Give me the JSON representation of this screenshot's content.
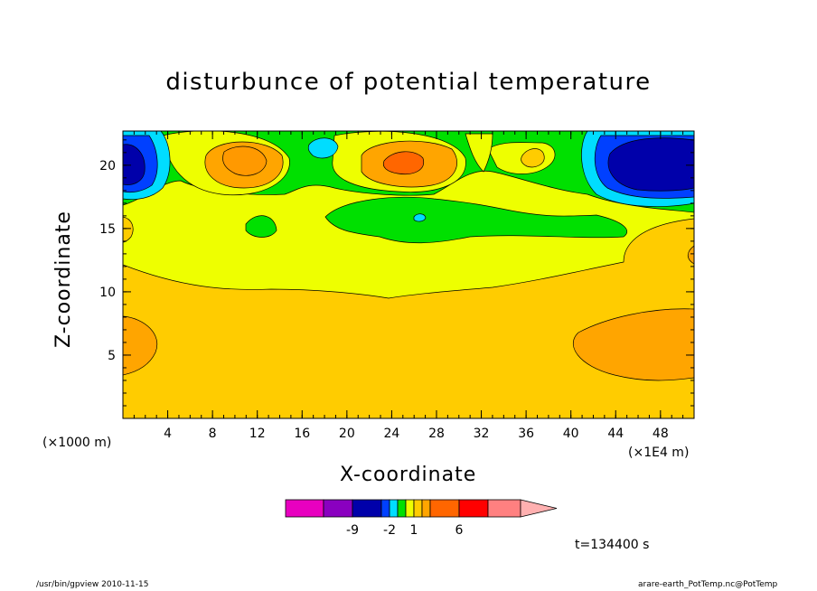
{
  "title": "disturbunce of potential temperature",
  "footer": {
    "left": "/usr/bin/gpview  2010-11-15",
    "right": "arare-earth_PotTemp.nc@PotTemp"
  },
  "time_label": "t=134400 s",
  "chart_data": {
    "type": "contour",
    "title": "disturbunce of potential temperature",
    "xlabel": "X-coordinate",
    "ylabel": "Z-coordinate",
    "x_unit_left": "(×1000 m)",
    "x_unit_right": "(×1E4 m)",
    "xlim": [
      0,
      51
    ],
    "ylim": [
      0,
      22.7
    ],
    "x_ticks": [
      4,
      8,
      12,
      16,
      20,
      24,
      28,
      32,
      36,
      40,
      44,
      48
    ],
    "y_ticks": [
      5,
      10,
      15,
      20
    ],
    "regions": [
      {
        "name": "mid band",
        "color": "#FFCC00"
      },
      {
        "name": "upper band",
        "color": "#EEFF00"
      },
      {
        "name": "top layer",
        "color": "#00E000"
      },
      {
        "name": "warm cell",
        "color": "#FFA500"
      },
      {
        "name": "strong warm cell",
        "color": "#FF6600"
      },
      {
        "name": "cold edge",
        "color": "#00DDFF"
      },
      {
        "name": "cold cell",
        "color": "#0040FF"
      },
      {
        "name": "coldest cell",
        "color": "#0000AA"
      }
    ],
    "colorbar": {
      "colors": [
        "#E800C0",
        "#8A00C0",
        "#0000AA",
        "#0040FF",
        "#00DDFF",
        "#00E000",
        "#EEFF00",
        "#FFCC00",
        "#FFA500",
        "#FF6600",
        "#FF0000",
        "#FF8080",
        "#FFB0B0"
      ],
      "tick_labels": [
        "-9",
        "-2",
        "1",
        "6"
      ]
    }
  }
}
